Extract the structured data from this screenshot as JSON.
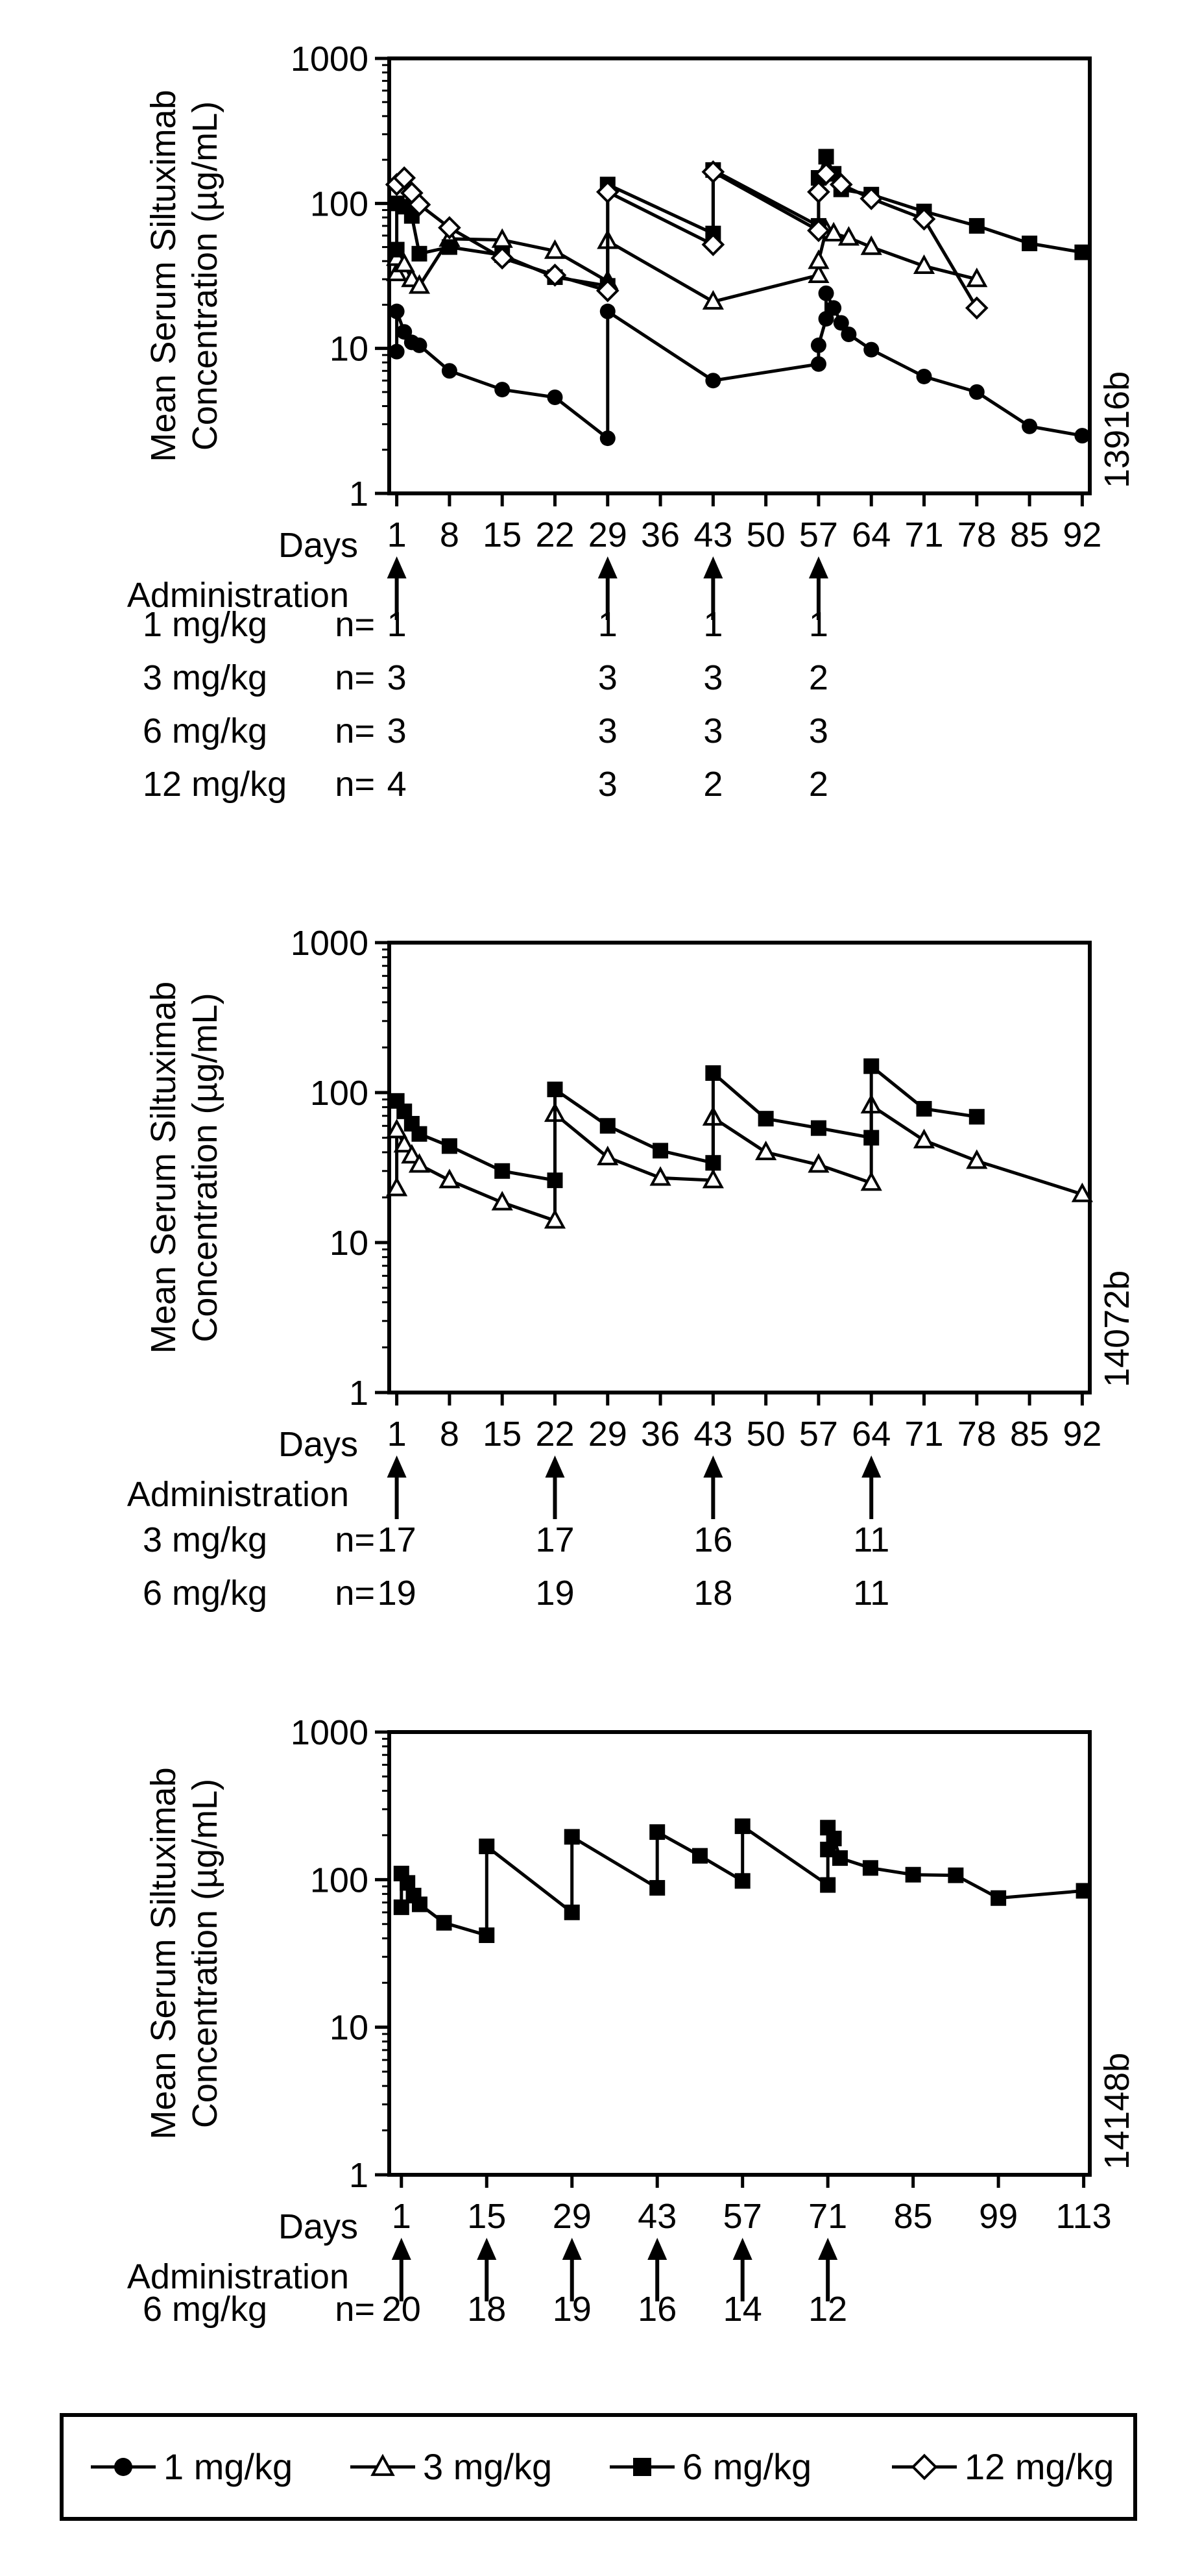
{
  "chart_data": [
    {
      "type": "line",
      "ylabel": [
        "Mean Serum Siltuximab",
        "Concentration (µg/mL)"
      ],
      "xlabel": "Days",
      "side_label": "13916b",
      "yscale": "log",
      "ylim": [
        1,
        1000
      ],
      "yticks": [
        "1",
        "10",
        "100",
        "1000"
      ],
      "xticks": [
        "1",
        "8",
        "15",
        "22",
        "29",
        "36",
        "43",
        "50",
        "57",
        "64",
        "71",
        "78",
        "85",
        "92"
      ],
      "xlim": [
        0,
        93
      ],
      "administration_label": "Administration",
      "administration_days": [
        1,
        29,
        43,
        57
      ],
      "n_rows": [
        {
          "label": "1 mg/kg",
          "n_label": "n=",
          "values": [
            "1",
            "1",
            "1",
            "1"
          ]
        },
        {
          "label": "3 mg/kg",
          "n_label": "n=",
          "values": [
            "3",
            "3",
            "3",
            "2"
          ]
        },
        {
          "label": "6 mg/kg",
          "n_label": "n=",
          "values": [
            "3",
            "3",
            "3",
            "3"
          ]
        },
        {
          "label": "12 mg/kg",
          "n_label": "n=",
          "values": [
            "4",
            "3",
            "2",
            "2"
          ]
        }
      ],
      "series": [
        {
          "name": "1 mg/kg",
          "marker": "circle",
          "points": [
            [
              1,
              9.5
            ],
            [
              1,
              18
            ],
            [
              2,
              13
            ],
            [
              3,
              11
            ],
            [
              4,
              10.5
            ],
            [
              8,
              7
            ],
            [
              15,
              5.2
            ],
            [
              22,
              4.6
            ],
            [
              29,
              2.4
            ],
            [
              29,
              18
            ],
            [
              43,
              6
            ],
            [
              57,
              7.8
            ],
            [
              57,
              10.5
            ],
            [
              58,
              16
            ],
            [
              58,
              24
            ],
            [
              59,
              19
            ],
            [
              60,
              15
            ],
            [
              61,
              12.5
            ],
            [
              64,
              9.8
            ],
            [
              71,
              6.4
            ],
            [
              78,
              5
            ],
            [
              85,
              2.9
            ],
            [
              92,
              2.5
            ]
          ]
        },
        {
          "name": "3 mg/kg",
          "marker": "triangle",
          "points": [
            [
              1,
              33
            ],
            [
              1,
              42
            ],
            [
              2,
              38
            ],
            [
              3,
              30
            ],
            [
              4,
              27
            ],
            [
              8,
              57
            ],
            [
              15,
              56
            ],
            [
              22,
              47
            ],
            [
              29,
              29
            ],
            [
              29,
              55
            ],
            [
              43,
              21
            ],
            [
              57,
              32
            ],
            [
              57,
              40
            ],
            [
              58,
              65
            ],
            [
              59,
              62
            ],
            [
              61,
              58
            ],
            [
              64,
              50
            ],
            [
              71,
              37
            ],
            [
              78,
              30
            ]
          ]
        },
        {
          "name": "6 mg/kg",
          "marker": "square",
          "points": [
            [
              1,
              48
            ],
            [
              1,
              100
            ],
            [
              2,
              95
            ],
            [
              3,
              82
            ],
            [
              4,
              45
            ],
            [
              8,
              50
            ],
            [
              15,
              44
            ],
            [
              22,
              31
            ],
            [
              29,
              27
            ],
            [
              29,
              135
            ],
            [
              43,
              62
            ],
            [
              43,
              170
            ],
            [
              57,
              70
            ],
            [
              57,
              150
            ],
            [
              58,
              210
            ],
            [
              59,
              160
            ],
            [
              60,
              125
            ],
            [
              64,
              115
            ],
            [
              71,
              88
            ],
            [
              78,
              70
            ],
            [
              85,
              53
            ],
            [
              92,
              46
            ]
          ]
        },
        {
          "name": "12 mg/kg",
          "marker": "diamond",
          "points": [
            [
              1,
              135
            ],
            [
              2,
              150
            ],
            [
              3,
              118
            ],
            [
              4,
              98
            ],
            [
              8,
              68
            ],
            [
              15,
              42
            ],
            [
              22,
              32
            ],
            [
              29,
              25
            ],
            [
              29,
              120
            ],
            [
              43,
              52
            ],
            [
              43,
              165
            ],
            [
              57,
              65
            ],
            [
              57,
              120
            ],
            [
              58,
              160
            ],
            [
              60,
              135
            ],
            [
              64,
              108
            ],
            [
              71,
              78
            ],
            [
              78,
              19
            ]
          ]
        }
      ]
    },
    {
      "type": "line",
      "ylabel": [
        "Mean Serum Siltuximab",
        "Concentration (µg/mL)"
      ],
      "xlabel": "Days",
      "side_label": "14072b",
      "yscale": "log",
      "ylim": [
        1,
        1000
      ],
      "yticks": [
        "1",
        "10",
        "100",
        "1000"
      ],
      "xticks": [
        "1",
        "8",
        "15",
        "22",
        "29",
        "36",
        "43",
        "50",
        "57",
        "64",
        "71",
        "78",
        "85",
        "92"
      ],
      "xlim": [
        0,
        93
      ],
      "administration_label": "Administration",
      "administration_days": [
        1,
        22,
        43,
        64
      ],
      "n_rows": [
        {
          "label": "3 mg/kg",
          "n_label": "n=",
          "values": [
            "17",
            "17",
            "16",
            "11"
          ]
        },
        {
          "label": "6 mg/kg",
          "n_label": "n=",
          "values": [
            "19",
            "19",
            "18",
            "11"
          ]
        }
      ],
      "series": [
        {
          "name": "3 mg/kg",
          "marker": "triangle",
          "points": [
            [
              1,
              23
            ],
            [
              1,
              56
            ],
            [
              2,
              45
            ],
            [
              3,
              38
            ],
            [
              4,
              33
            ],
            [
              8,
              26
            ],
            [
              15,
              18.5
            ],
            [
              22,
              14
            ],
            [
              22,
              72
            ],
            [
              29,
              37
            ],
            [
              36,
              27
            ],
            [
              43,
              26
            ],
            [
              43,
              68
            ],
            [
              50,
              40
            ],
            [
              57,
              33
            ],
            [
              64,
              25
            ],
            [
              64,
              82
            ],
            [
              71,
              48
            ],
            [
              78,
              35
            ],
            [
              92,
              21
            ]
          ]
        },
        {
          "name": "6 mg/kg",
          "marker": "square",
          "points": [
            [
              1,
              88
            ],
            [
              2,
              75
            ],
            [
              3,
              62
            ],
            [
              4,
              53
            ],
            [
              8,
              44
            ],
            [
              15,
              30
            ],
            [
              22,
              26
            ],
            [
              22,
              105
            ],
            [
              29,
              60
            ],
            [
              36,
              41
            ],
            [
              43,
              34
            ],
            [
              43,
              135
            ],
            [
              50,
              67
            ],
            [
              57,
              58
            ],
            [
              64,
              50
            ],
            [
              64,
              150
            ],
            [
              71,
              78
            ],
            [
              78,
              69
            ]
          ]
        }
      ]
    },
    {
      "type": "line",
      "ylabel": [
        "Mean Serum Siltuximab",
        "Concentration (µg/mL)"
      ],
      "xlabel": "Days",
      "side_label": "14148b",
      "yscale": "log",
      "ylim": [
        1,
        1000
      ],
      "yticks": [
        "1",
        "10",
        "100",
        "1000"
      ],
      "xticks": [
        "1",
        "15",
        "29",
        "43",
        "57",
        "71",
        "85",
        "99",
        "113"
      ],
      "xlim": [
        -1,
        114
      ],
      "administration_label": "Administration",
      "administration_days": [
        1,
        15,
        29,
        43,
        57,
        71
      ],
      "n_rows": [
        {
          "label": "6 mg/kg",
          "n_label": "n=",
          "values": [
            "20",
            "18",
            "19",
            "16",
            "14",
            "12"
          ]
        }
      ],
      "series": [
        {
          "name": "6 mg/kg",
          "marker": "square",
          "points": [
            [
              1,
              65
            ],
            [
              1,
              110
            ],
            [
              2,
              95
            ],
            [
              3,
              78
            ],
            [
              4,
              68
            ],
            [
              8,
              51
            ],
            [
              15,
              42
            ],
            [
              15,
              168
            ],
            [
              29,
              60
            ],
            [
              29,
              195
            ],
            [
              43,
              88
            ],
            [
              43,
              210
            ],
            [
              50,
              145
            ],
            [
              57,
              98
            ],
            [
              57,
              230
            ],
            [
              71,
              92
            ],
            [
              71,
              160
            ],
            [
              71,
              225
            ],
            [
              72,
              190
            ],
            [
              73,
              140
            ],
            [
              78,
              120
            ],
            [
              85,
              108
            ],
            [
              92,
              107
            ],
            [
              99,
              75
            ],
            [
              113,
              84
            ]
          ]
        }
      ]
    }
  ],
  "legend": {
    "items": [
      {
        "label": "1 mg/kg",
        "marker": "circle"
      },
      {
        "label": "3 mg/kg",
        "marker": "triangle"
      },
      {
        "label": "6 mg/kg",
        "marker": "square"
      },
      {
        "label": "12 mg/kg",
        "marker": "diamond"
      }
    ]
  }
}
